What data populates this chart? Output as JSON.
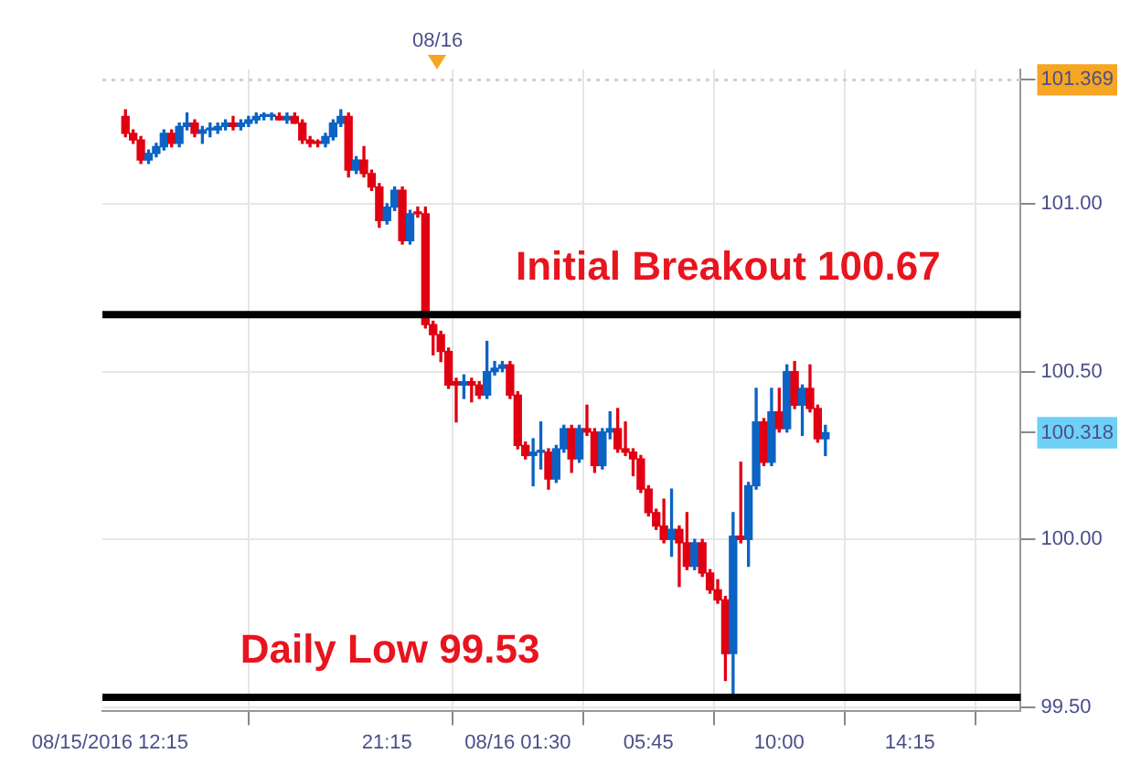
{
  "chart_data": {
    "type": "candlestick",
    "x": [
      "2016-08-15T12:45",
      "2016-08-15T13:00",
      "2016-08-15T13:15",
      "2016-08-15T13:30",
      "2016-08-15T13:45",
      "2016-08-15T14:00",
      "2016-08-15T14:15",
      "2016-08-15T14:30",
      "2016-08-15T14:45",
      "2016-08-15T15:00",
      "2016-08-15T15:15",
      "2016-08-15T15:30",
      "2016-08-15T15:45",
      "2016-08-15T16:00",
      "2016-08-15T16:15",
      "2016-08-15T16:30",
      "2016-08-15T16:45",
      "2016-08-15T17:00",
      "2016-08-15T17:15",
      "2016-08-15T17:30",
      "2016-08-15T17:45",
      "2016-08-15T18:00",
      "2016-08-15T18:15",
      "2016-08-15T18:30",
      "2016-08-15T18:45",
      "2016-08-15T19:00",
      "2016-08-15T19:15",
      "2016-08-15T19:30",
      "2016-08-15T19:45",
      "2016-08-15T20:00",
      "2016-08-15T20:15",
      "2016-08-15T20:30",
      "2016-08-15T20:45",
      "2016-08-15T21:00",
      "2016-08-15T21:15",
      "2016-08-15T21:30",
      "2016-08-15T21:45",
      "2016-08-15T22:00",
      "2016-08-15T22:15",
      "2016-08-15T22:30",
      "2016-08-15T22:45",
      "2016-08-15T23:00",
      "2016-08-15T23:15",
      "2016-08-15T23:30",
      "2016-08-15T23:45",
      "2016-08-16T00:00",
      "2016-08-16T00:15",
      "2016-08-16T00:30",
      "2016-08-16T00:45",
      "2016-08-16T01:00",
      "2016-08-16T01:15",
      "2016-08-16T01:30",
      "2016-08-16T01:45",
      "2016-08-16T02:00",
      "2016-08-16T02:15",
      "2016-08-16T02:30",
      "2016-08-16T02:45",
      "2016-08-16T03:00",
      "2016-08-16T03:15",
      "2016-08-16T03:30",
      "2016-08-16T03:45",
      "2016-08-16T04:00",
      "2016-08-16T04:15",
      "2016-08-16T04:30",
      "2016-08-16T04:45",
      "2016-08-16T05:00",
      "2016-08-16T05:15",
      "2016-08-16T05:30",
      "2016-08-16T05:45",
      "2016-08-16T06:00",
      "2016-08-16T06:15",
      "2016-08-16T06:30",
      "2016-08-16T06:45",
      "2016-08-16T07:00",
      "2016-08-16T07:15",
      "2016-08-16T07:30",
      "2016-08-16T07:45",
      "2016-08-16T08:00",
      "2016-08-16T08:15",
      "2016-08-16T08:30",
      "2016-08-16T08:45",
      "2016-08-16T09:00",
      "2016-08-16T09:15",
      "2016-08-16T09:30",
      "2016-08-16T09:45",
      "2016-08-16T10:00",
      "2016-08-16T10:15",
      "2016-08-16T10:30",
      "2016-08-16T10:45",
      "2016-08-16T11:00",
      "2016-08-16T11:15",
      "2016-08-16T11:30"
    ],
    "ohlc": [
      [
        101.26,
        101.28,
        101.2,
        101.21
      ],
      [
        101.21,
        101.22,
        101.18,
        101.19
      ],
      [
        101.19,
        101.2,
        101.12,
        101.13
      ],
      [
        101.13,
        101.16,
        101.12,
        101.15
      ],
      [
        101.15,
        101.18,
        101.14,
        101.17
      ],
      [
        101.17,
        101.22,
        101.16,
        101.21
      ],
      [
        101.21,
        101.22,
        101.17,
        101.18
      ],
      [
        101.18,
        101.24,
        101.17,
        101.23
      ],
      [
        101.23,
        101.27,
        101.22,
        101.24
      ],
      [
        101.24,
        101.25,
        101.2,
        101.21
      ],
      [
        101.21,
        101.23,
        101.18,
        101.22
      ],
      [
        101.22,
        101.24,
        101.2,
        101.22
      ],
      [
        101.22,
        101.24,
        101.21,
        101.23
      ],
      [
        101.23,
        101.25,
        101.22,
        101.24
      ],
      [
        101.24,
        101.26,
        101.22,
        101.23
      ],
      [
        101.23,
        101.25,
        101.22,
        101.24
      ],
      [
        101.24,
        101.26,
        101.23,
        101.25
      ],
      [
        101.25,
        101.27,
        101.24,
        101.26
      ],
      [
        101.26,
        101.27,
        101.25,
        101.26
      ],
      [
        101.26,
        101.27,
        101.25,
        101.26
      ],
      [
        101.26,
        101.27,
        101.25,
        101.25
      ],
      [
        101.25,
        101.27,
        101.24,
        101.26
      ],
      [
        101.26,
        101.27,
        101.24,
        101.24
      ],
      [
        101.24,
        101.25,
        101.18,
        101.19
      ],
      [
        101.19,
        101.2,
        101.17,
        101.18
      ],
      [
        101.18,
        101.19,
        101.17,
        101.18
      ],
      [
        101.18,
        101.21,
        101.17,
        101.2
      ],
      [
        101.2,
        101.25,
        101.19,
        101.24
      ],
      [
        101.24,
        101.28,
        101.23,
        101.26
      ],
      [
        101.26,
        101.27,
        101.08,
        101.1
      ],
      [
        101.1,
        101.14,
        101.09,
        101.13
      ],
      [
        101.13,
        101.17,
        101.08,
        101.09
      ],
      [
        101.09,
        101.1,
        101.04,
        101.05
      ],
      [
        101.05,
        101.06,
        100.93,
        100.95
      ],
      [
        100.95,
        101,
        100.94,
        100.99
      ],
      [
        100.99,
        101.05,
        100.98,
        101.04
      ],
      [
        101.04,
        101.05,
        100.88,
        100.89
      ],
      [
        100.89,
        100.98,
        100.88,
        100.97
      ],
      [
        100.97,
        100.99,
        100.96,
        100.97
      ],
      [
        100.97,
        100.99,
        100.63,
        100.64
      ],
      [
        100.64,
        100.65,
        100.55,
        100.61
      ],
      [
        100.61,
        100.62,
        100.53,
        100.56
      ],
      [
        100.56,
        100.57,
        100.45,
        100.46
      ],
      [
        100.47,
        100.48,
        100.35,
        100.46
      ],
      [
        100.46,
        100.49,
        100.42,
        100.47
      ],
      [
        100.47,
        100.48,
        100.41,
        100.46
      ],
      [
        100.46,
        100.47,
        100.42,
        100.43
      ],
      [
        100.43,
        100.59,
        100.42,
        100.5
      ],
      [
        100.5,
        100.53,
        100.49,
        100.51
      ],
      [
        100.51,
        100.53,
        100.5,
        100.52
      ],
      [
        100.52,
        100.53,
        100.42,
        100.43
      ],
      [
        100.43,
        100.44,
        100.27,
        100.28
      ],
      [
        100.28,
        100.29,
        100.24,
        100.25
      ],
      [
        100.25,
        100.3,
        100.16,
        100.26
      ],
      [
        100.26,
        100.35,
        100.21,
        100.26
      ],
      [
        100.26,
        100.27,
        100.15,
        100.18
      ],
      [
        100.18,
        100.28,
        100.17,
        100.27
      ],
      [
        100.27,
        100.34,
        100.26,
        100.33
      ],
      [
        100.33,
        100.34,
        100.2,
        100.24
      ],
      [
        100.24,
        100.34,
        100.23,
        100.33
      ],
      [
        100.33,
        100.4,
        100.31,
        100.32
      ],
      [
        100.32,
        100.33,
        100.2,
        100.22
      ],
      [
        100.22,
        100.33,
        100.21,
        100.32
      ],
      [
        100.32,
        100.38,
        100.3,
        100.33
      ],
      [
        100.33,
        100.39,
        100.26,
        100.27
      ],
      [
        100.27,
        100.35,
        100.25,
        100.26
      ],
      [
        100.26,
        100.27,
        100.19,
        100.24
      ],
      [
        100.24,
        100.25,
        100.14,
        100.15
      ],
      [
        100.15,
        100.16,
        100.07,
        100.08
      ],
      [
        100.08,
        100.09,
        100.03,
        100.04
      ],
      [
        100.04,
        100.12,
        99.99,
        100
      ],
      [
        100,
        100.15,
        99.95,
        100.03
      ],
      [
        100.03,
        100.04,
        99.86,
        99.99
      ],
      [
        99.99,
        100.08,
        99.91,
        99.92
      ],
      [
        99.92,
        100,
        99.91,
        99.99
      ],
      [
        99.99,
        100,
        99.89,
        99.9
      ],
      [
        99.9,
        99.91,
        99.84,
        99.85
      ],
      [
        99.85,
        99.88,
        99.81,
        99.82
      ],
      [
        99.82,
        99.83,
        99.58,
        99.66
      ],
      [
        99.66,
        100.08,
        99.53,
        100.01
      ],
      [
        100.01,
        100.23,
        99.99,
        100
      ],
      [
        100,
        100.17,
        99.92,
        100.16
      ],
      [
        100.16,
        100.45,
        100.15,
        100.35
      ],
      [
        100.35,
        100.36,
        100.22,
        100.23
      ],
      [
        100.23,
        100.45,
        100.22,
        100.38
      ],
      [
        100.38,
        100.45,
        100.32,
        100.33
      ],
      [
        100.33,
        100.52,
        100.32,
        100.5
      ],
      [
        100.5,
        100.53,
        100.39,
        100.4
      ],
      [
        100.4,
        100.46,
        100.31,
        100.45
      ],
      [
        100.45,
        100.52,
        100.38,
        100.39
      ],
      [
        100.39,
        100.4,
        100.29,
        100.3
      ],
      [
        100.3,
        100.34,
        100.25,
        100.318
      ]
    ],
    "colors": [
      "#e00012",
      "#e00012",
      "#e00012",
      "#0b63c4",
      "#0b63c4",
      "#0b63c4",
      "#e00012",
      "#0b63c4",
      "#0b63c4",
      "#e00012",
      "#0b63c4",
      "#0b63c4",
      "#0b63c4",
      "#0b63c4",
      "#e00012",
      "#0b63c4",
      "#0b63c4",
      "#0b63c4",
      "#0b63c4",
      "#0b63c4",
      "#e00012",
      "#0b63c4",
      "#e00012",
      "#e00012",
      "#e00012",
      "#e00012",
      "#0b63c4",
      "#0b63c4",
      "#0b63c4",
      "#e00012",
      "#0b63c4",
      "#e00012",
      "#e00012",
      "#e00012",
      "#0b63c4",
      "#0b63c4",
      "#e00012",
      "#0b63c4",
      "#e00012",
      "#e00012",
      "#e00012",
      "#e00012",
      "#e00012",
      "#e00012",
      "#0b63c4",
      "#e00012",
      "#e00012",
      "#0b63c4",
      "#0b63c4",
      "#0b63c4",
      "#e00012",
      "#e00012",
      "#e00012",
      "#0b63c4",
      "#0b63c4",
      "#e00012",
      "#0b63c4",
      "#0b63c4",
      "#e00012",
      "#0b63c4",
      "#e00012",
      "#e00012",
      "#0b63c4",
      "#0b63c4",
      "#e00012",
      "#e00012",
      "#e00012",
      "#e00012",
      "#e00012",
      "#e00012",
      "#e00012",
      "#0b63c4",
      "#e00012",
      "#e00012",
      "#0b63c4",
      "#e00012",
      "#e00012",
      "#e00012",
      "#e00012",
      "#0b63c4",
      "#e00012",
      "#0b63c4",
      "#0b63c4",
      "#e00012",
      "#0b63c4",
      "#e00012",
      "#0b63c4",
      "#e00012",
      "#0b63c4",
      "#e00012",
      "#e00012",
      "#0b63c4"
    ],
    "xlim": [
      "2016-08-15T12:00",
      "2016-08-16T17:51"
    ],
    "xticks": [
      {
        "value": "2016-08-15T12:15",
        "label": "08/15/2016 12:15"
      },
      {
        "value": "2016-08-15T21:15",
        "label": "21:15"
      },
      {
        "value": "2016-08-16T01:30",
        "label": "08/16 01:30"
      },
      {
        "value": "2016-08-16T05:45",
        "label": "05:45"
      },
      {
        "value": "2016-08-16T10:00",
        "label": "10:00"
      },
      {
        "value": "2016-08-16T14:15",
        "label": "14:15"
      }
    ],
    "annotations": [
      "08/16"
    ],
    "ylim": [
      99.49,
      101.4
    ],
    "yticks": [
      {
        "value": 99.5,
        "label": "99.50"
      },
      {
        "value": 100,
        "label": "100.00"
      },
      100.318,
      {
        "value": 100.5,
        "label": "100.50"
      },
      {
        "value": 101,
        "label": "101.00"
      },
      101.369
    ],
    "ref_lines": [
      {
        "axis": "y",
        "value": 100.67,
        "label": "Initial Breakout 100.67",
        "color": "#000000"
      },
      {
        "axis": "y",
        "value": 99.53,
        "label": "Daily Low 99.53",
        "color": "#000000"
      },
      {
        "axis": "y",
        "value": 101.369,
        "color": "#d0d0d0",
        "line_style": "dotted"
      }
    ],
    "grid": true,
    "legend": false
  }
}
